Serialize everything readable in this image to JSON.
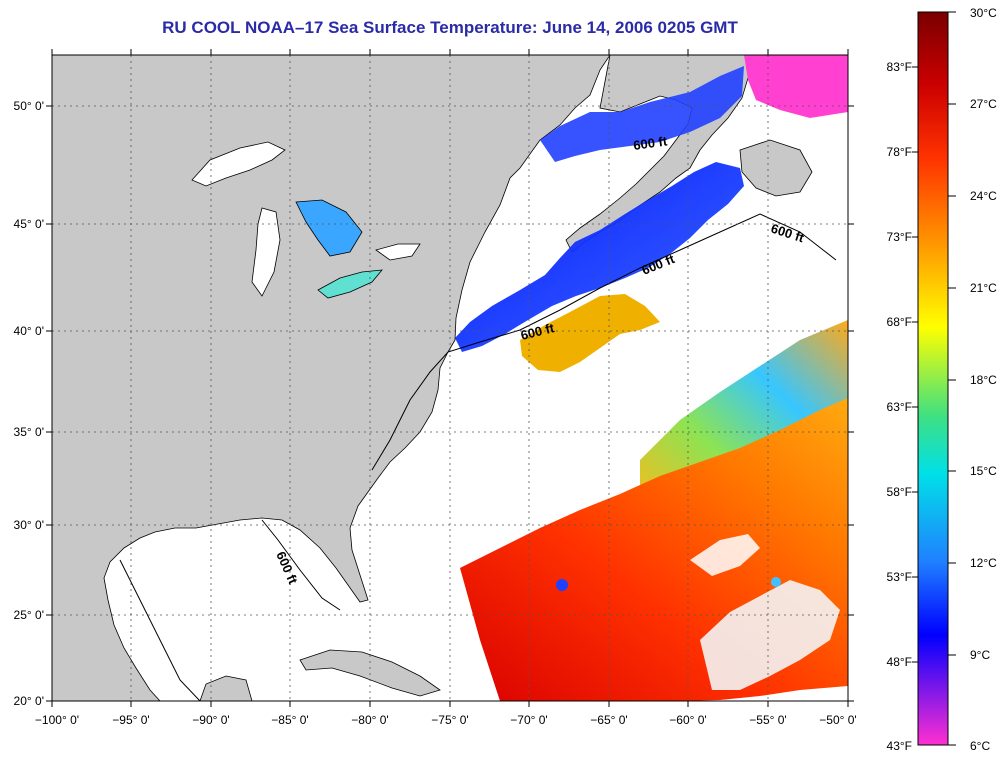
{
  "title": "RU COOL  NOAA–17  Sea Surface Temperature:  June 14, 2006 0205 GMT",
  "map": {
    "lon_range": [
      -100,
      -50
    ],
    "lat_range": [
      20,
      52.5
    ],
    "lat_labels": [
      "20° 0'",
      "25° 0'",
      "30° 0'",
      "35° 0'",
      "40° 0'",
      "45° 0'",
      "50° 0'"
    ],
    "lon_labels": [
      "−100° 0'",
      "−95° 0'",
      "−90° 0'",
      "−85° 0'",
      "−80° 0'",
      "−75° 0'",
      "−70° 0'",
      "−65° 0'",
      "−60° 0'",
      "−55° 0'",
      "−50° 0'"
    ],
    "contour_label": "600 ft",
    "colors": {
      "land": "#c8c8c8",
      "no_data": "#ffffff",
      "coast": "#000000"
    }
  },
  "colorbar": {
    "celsius": [
      "30°C",
      "27°C",
      "24°C",
      "21°C",
      "18°C",
      "15°C",
      "12°C",
      "9°C",
      "6°C"
    ],
    "fahrenheit": [
      "83°F",
      "78°F",
      "73°F",
      "68°F",
      "63°F",
      "58°F",
      "53°F",
      "48°F",
      "43°F"
    ],
    "stops": [
      "#8b0000",
      "#ff2a00",
      "#ff9a00",
      "#ffff00",
      "#40e070",
      "#00e0e0",
      "#2080ff",
      "#0000ff",
      "#ff30d0"
    ]
  }
}
